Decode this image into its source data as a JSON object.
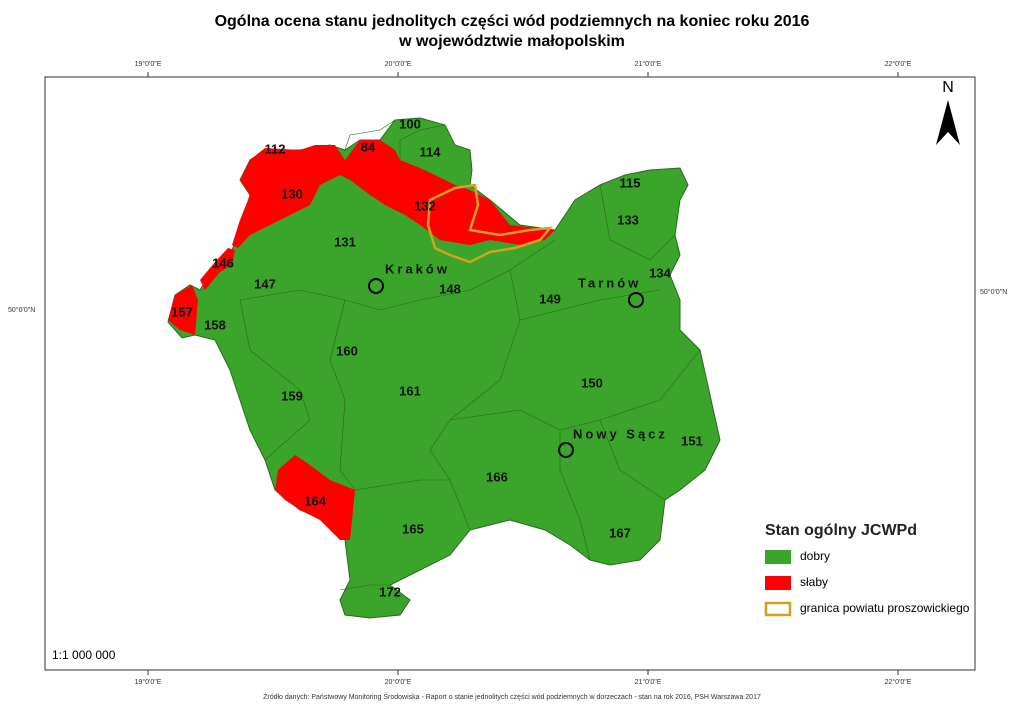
{
  "title": [
    "Ogólna ocena stanu jednolitych części wód podziemnych na koniec roku 2016",
    "w województwie małopolskim"
  ],
  "graticule": {
    "top": [
      "19°0'0\"E",
      "20°0'0\"E",
      "21°0'0\"E",
      "22°0'0\"E"
    ],
    "bottom": [
      "19°0'0\"E",
      "20°0'0\"E",
      "21°0'0\"E",
      "22°0'0\"E"
    ],
    "left": "50°0'0\"N",
    "right": "50°0'0\"N"
  },
  "north": "N",
  "regions": [
    "100",
    "84",
    "114",
    "112",
    "130",
    "132",
    "131",
    "115",
    "133",
    "134",
    "146",
    "147",
    "148",
    "149",
    "157",
    "158",
    "160",
    "161",
    "150",
    "159",
    "151",
    "166",
    "164",
    "165",
    "167",
    "172"
  ],
  "cities": [
    "Kraków",
    "Tarnów",
    "Nowy Sącz"
  ],
  "legend": {
    "title": "Stan ogólny JCWPd",
    "items": [
      {
        "label": "dobry",
        "color": "#3aa52a"
      },
      {
        "label": "słaby",
        "color": "#ff0000"
      },
      {
        "label": "granica powiatu proszowickiego",
        "color": "#d4a020"
      }
    ]
  },
  "scale": "1:1 000 000",
  "source": "Źródło danych: Państwowy Monitoring Środowiska - Raport o stanie jednolitych części wód podziemnych w dorzeczach - stan na rok 2016, PSH Warszawa 2017"
}
